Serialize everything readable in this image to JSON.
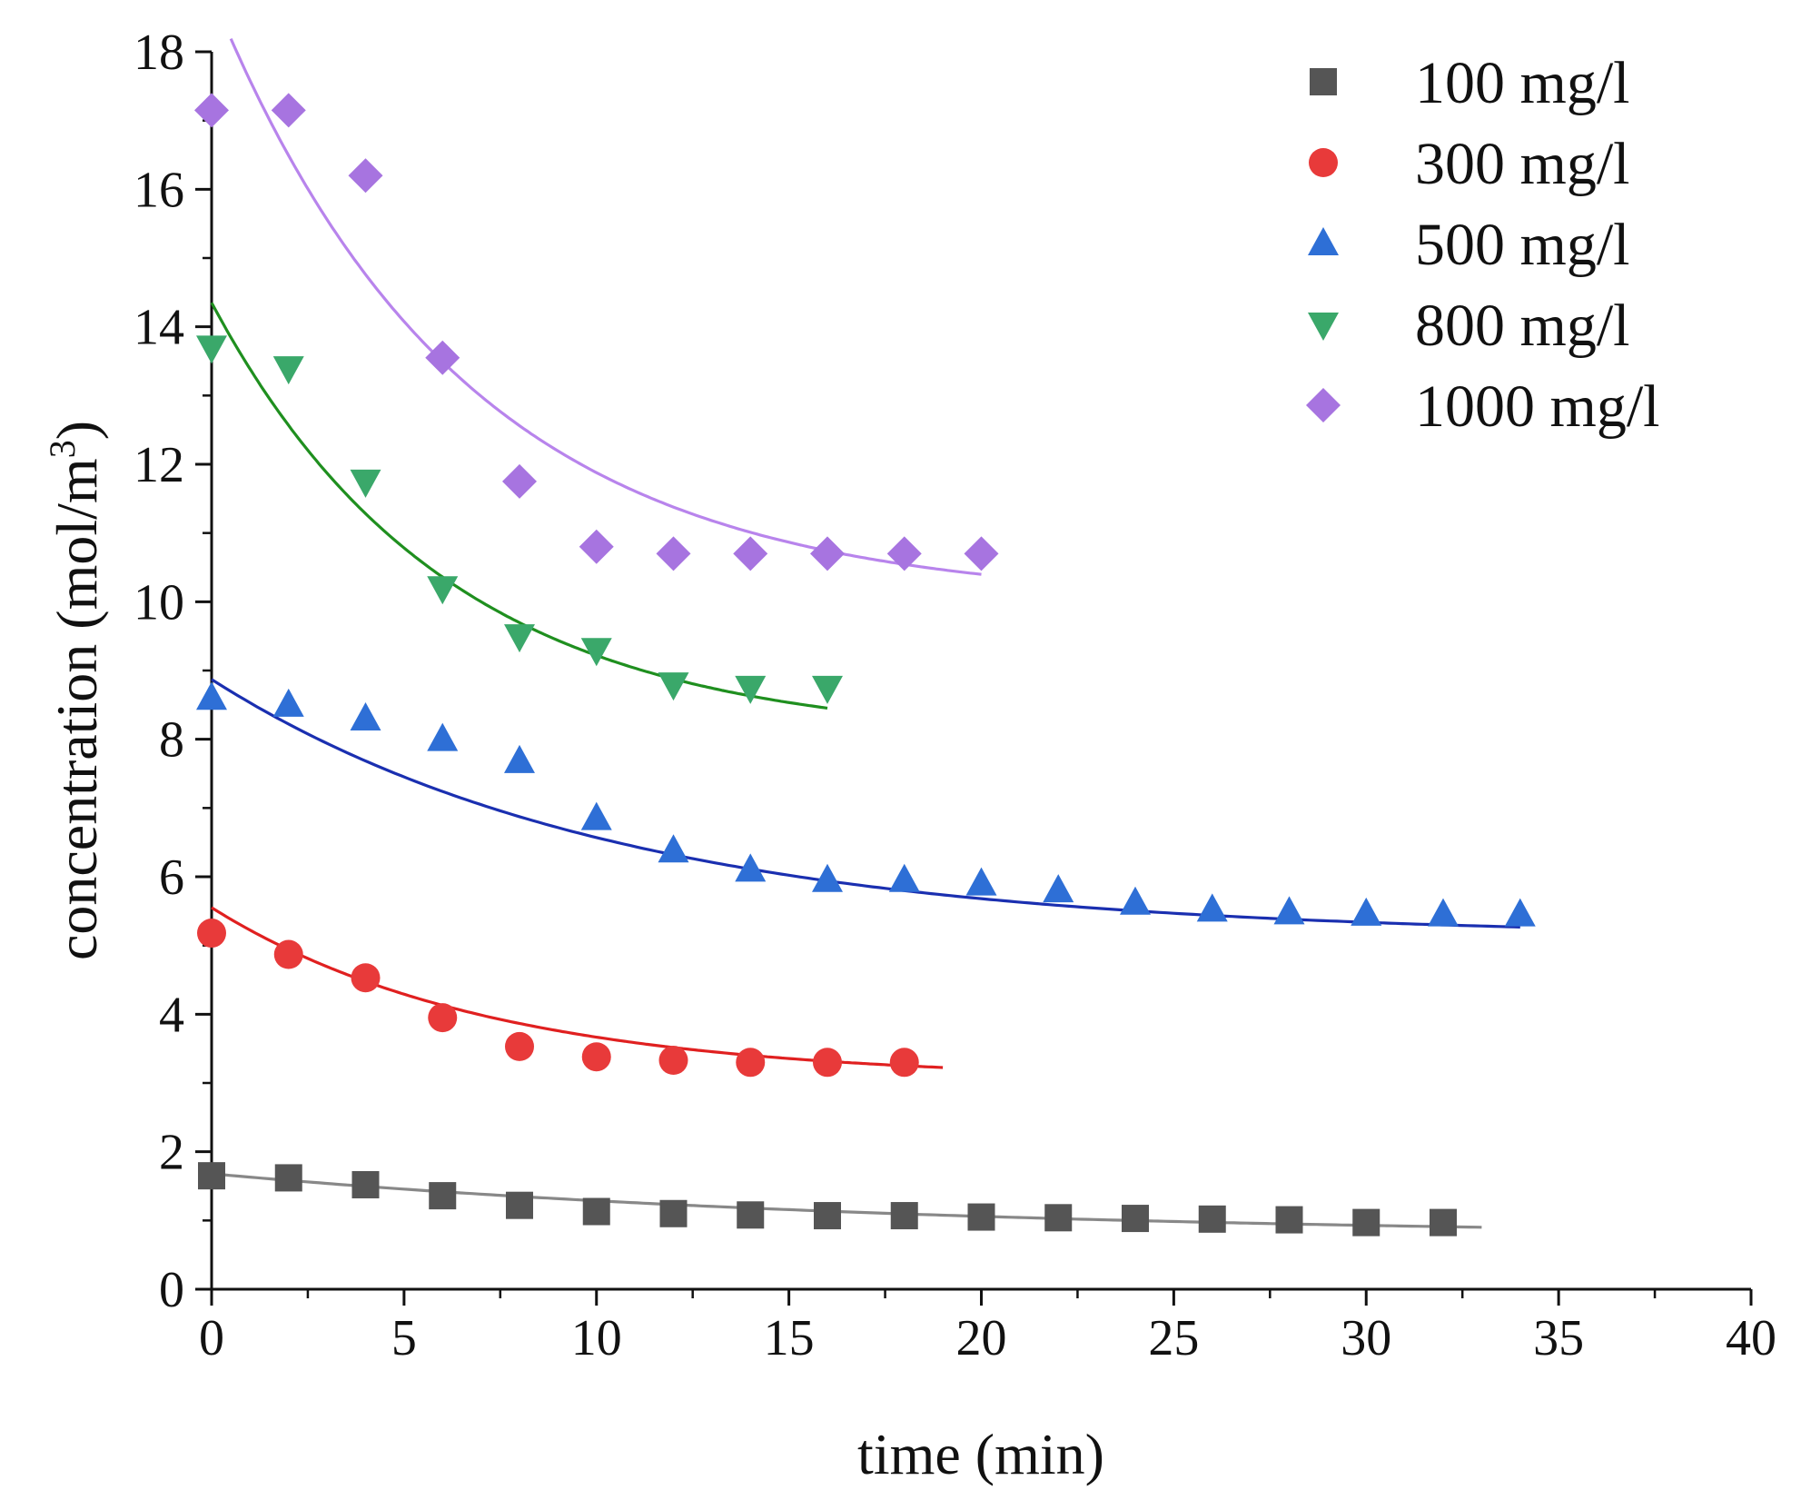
{
  "chart_data": {
    "type": "scatter",
    "title": "",
    "xlabel": "time (min)",
    "ylabel_main": "concentration (mol/m",
    "ylabel_sup": "3",
    "ylabel_end": ")",
    "xlim": [
      0,
      40
    ],
    "ylim": [
      0,
      18
    ],
    "xticks": [
      "0",
      "5",
      "10",
      "15",
      "20",
      "25",
      "30",
      "35",
      "40"
    ],
    "yticks": [
      "0",
      "2",
      "4",
      "6",
      "8",
      "10",
      "12",
      "14",
      "16",
      "18"
    ],
    "grid": false,
    "legend_position": "top-right",
    "series": [
      {
        "name": "100 mg/l",
        "color": "#555555",
        "fit_color": "#888888",
        "marker": "square",
        "points": [
          [
            0,
            1.65
          ],
          [
            2,
            1.62
          ],
          [
            4,
            1.52
          ],
          [
            6,
            1.36
          ],
          [
            8,
            1.22
          ],
          [
            10,
            1.13
          ],
          [
            12,
            1.1
          ],
          [
            14,
            1.08
          ],
          [
            16,
            1.07
          ],
          [
            18,
            1.07
          ],
          [
            20,
            1.05
          ],
          [
            22,
            1.04
          ],
          [
            24,
            1.03
          ],
          [
            26,
            1.02
          ],
          [
            28,
            1.01
          ],
          [
            30,
            0.97
          ],
          [
            32,
            0.97
          ]
        ],
        "fit": {
          "c_inf": 0.75,
          "amp": 0.93,
          "k": 0.055,
          "t_start": 0,
          "t_end": 33
        }
      },
      {
        "name": "300 mg/l",
        "color": "#e83a3a",
        "fit_color": "#e02020",
        "marker": "circle",
        "points": [
          [
            0,
            5.18
          ],
          [
            2,
            4.87
          ],
          [
            4,
            4.53
          ],
          [
            6,
            3.95
          ],
          [
            8,
            3.53
          ],
          [
            10,
            3.38
          ],
          [
            12,
            3.33
          ],
          [
            14,
            3.3
          ],
          [
            16,
            3.3
          ],
          [
            18,
            3.3
          ]
        ],
        "fit": {
          "c_inf": 3.05,
          "amp": 2.5,
          "k": 0.14,
          "t_start": 0,
          "t_end": 19
        }
      },
      {
        "name": "500 mg/l",
        "color": "#2e6fd6",
        "fit_color": "#1a2fb0",
        "marker": "triangle-up",
        "points": [
          [
            0,
            8.6
          ],
          [
            2,
            8.5
          ],
          [
            4,
            8.3
          ],
          [
            6,
            8.0
          ],
          [
            8,
            7.68
          ],
          [
            10,
            6.85
          ],
          [
            12,
            6.38
          ],
          [
            14,
            6.1
          ],
          [
            16,
            5.95
          ],
          [
            18,
            5.95
          ],
          [
            20,
            5.9
          ],
          [
            22,
            5.8
          ],
          [
            24,
            5.62
          ],
          [
            26,
            5.52
          ],
          [
            28,
            5.48
          ],
          [
            30,
            5.46
          ],
          [
            32,
            5.45
          ],
          [
            34,
            5.45
          ]
        ],
        "fit": {
          "c_inf": 5.12,
          "amp": 3.75,
          "k": 0.095,
          "t_start": 0,
          "t_end": 34
        }
      },
      {
        "name": "800 mg/l",
        "color": "#3aa86a",
        "fit_color": "#1f8f1f",
        "marker": "triangle-down",
        "points": [
          [
            0,
            13.7
          ],
          [
            2,
            13.4
          ],
          [
            4,
            11.75
          ],
          [
            6,
            10.2
          ],
          [
            8,
            9.5
          ],
          [
            10,
            9.3
          ],
          [
            12,
            8.8
          ],
          [
            14,
            8.75
          ],
          [
            16,
            8.75
          ]
        ],
        "fit": {
          "c_inf": 8.0,
          "amp": 6.35,
          "k": 0.165,
          "t_start": 0,
          "t_end": 16
        }
      },
      {
        "name": "1000 mg/l",
        "color": "#a774e0",
        "fit_color": "#b884ec",
        "marker": "diamond",
        "points": [
          [
            0,
            17.15
          ],
          [
            2,
            17.15
          ],
          [
            4,
            16.2
          ],
          [
            6,
            13.55
          ],
          [
            8,
            11.75
          ],
          [
            10,
            10.8
          ],
          [
            12,
            10.7
          ],
          [
            14,
            10.7
          ],
          [
            16,
            10.7
          ],
          [
            18,
            10.7
          ],
          [
            20,
            10.7
          ]
        ],
        "fit": {
          "c_inf": 10.0,
          "amp": 8.85,
          "k": 0.155,
          "t_start": 0.5,
          "t_end": 20
        }
      }
    ]
  }
}
